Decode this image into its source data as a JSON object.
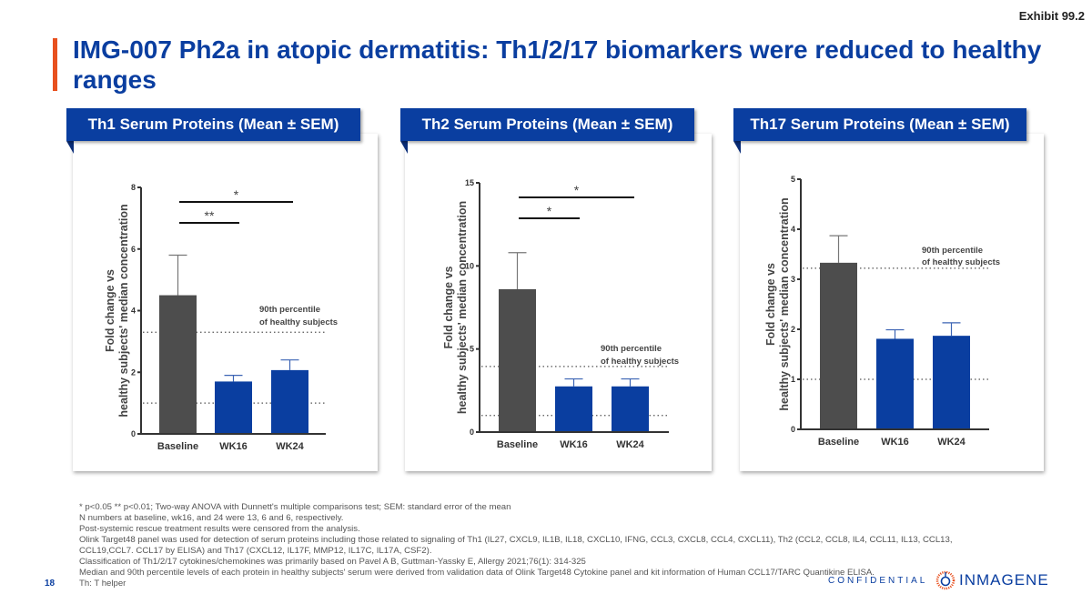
{
  "exhibit": "Exhibit 99.2",
  "title": "IMG-007 Ph2a in atopic dermatitis: Th1/2/17 biomarkers were reduced to healthy ranges",
  "colors": {
    "brand": "#0a3ea0",
    "accent": "#e8501e",
    "baseline_bar": "#4d4d4d",
    "treatment_bar": "#0a3ea0"
  },
  "chart_data": [
    {
      "type": "bar",
      "title": "Th1 Serum Proteins (Mean ± SEM)",
      "ylabel": "Fold change vs healthy subjects' median concentration",
      "xlabel": "",
      "categories": [
        "Baseline",
        "WK16",
        "WK24"
      ],
      "values": [
        4.5,
        1.7,
        2.07
      ],
      "error_upper": [
        5.8,
        1.9,
        2.4
      ],
      "ylim": [
        0,
        8
      ],
      "yticks": [
        0,
        2,
        4,
        6,
        8
      ],
      "reference_lines": [
        {
          "y": 3.3,
          "label": "90th percentile of healthy subjects"
        },
        {
          "y": 1.0,
          "label": ""
        }
      ],
      "annotations": [
        {
          "from": "Baseline",
          "to": "WK24",
          "text": "*"
        },
        {
          "from": "Baseline",
          "to": "WK16",
          "text": "**"
        }
      ],
      "grid": false
    },
    {
      "type": "bar",
      "title": "Th2 Serum Proteins (Mean ± SEM)",
      "ylabel": "Fold change vs healthy subjects' median concentration",
      "xlabel": "",
      "categories": [
        "Baseline",
        "WK16",
        "WK24"
      ],
      "values": [
        8.6,
        2.75,
        2.75
      ],
      "error_upper": [
        10.8,
        3.2,
        3.2
      ],
      "ylim": [
        0,
        15
      ],
      "yticks": [
        0,
        5,
        10,
        15
      ],
      "reference_lines": [
        {
          "y": 3.95,
          "label": "90th percentile of healthy subjects"
        },
        {
          "y": 1.0,
          "label": ""
        }
      ],
      "annotations": [
        {
          "from": "Baseline",
          "to": "WK24",
          "text": "*"
        },
        {
          "from": "Baseline",
          "to": "WK16",
          "text": "*"
        }
      ],
      "grid": false
    },
    {
      "type": "bar",
      "title": "Th17 Serum Proteins (Mean ± SEM)",
      "ylabel": "Fold change vs healthy subjects' median concentration",
      "xlabel": "",
      "categories": [
        "Baseline",
        "WK16",
        "WK24"
      ],
      "values": [
        3.33,
        1.81,
        1.87
      ],
      "error_upper": [
        3.87,
        1.99,
        2.13
      ],
      "ylim": [
        0,
        5
      ],
      "yticks": [
        0,
        1,
        2,
        3,
        4,
        5
      ],
      "reference_lines": [
        {
          "y": 3.22,
          "label": "90th percentile of healthy subjects"
        },
        {
          "y": 1.0,
          "label": ""
        }
      ],
      "annotations": [],
      "grid": false
    }
  ],
  "panels": [
    {
      "header": "Th1 Serum Proteins (Mean ± SEM)",
      "ylabel_line1": "Fold change vs",
      "ylabel_line2": "healthy subjects' median concentration",
      "ref_label_line1": "90th percentile",
      "ref_label_line2": "of healthy subjects"
    },
    {
      "header": "Th2 Serum Proteins (Mean ± SEM)",
      "ylabel_line1": "Fold change vs",
      "ylabel_line2": "healthy subjects' median concentration",
      "ref_label_line1": "90th percentile",
      "ref_label_line2": "of healthy subjects"
    },
    {
      "header": "Th17 Serum Proteins (Mean ± SEM)",
      "ylabel_line1": "Fold change vs",
      "ylabel_line2": "healthy subjects' median concentration",
      "ref_label_line1": "90th percentile",
      "ref_label_line2": "of healthy subjects"
    }
  ],
  "footnotes": [
    "* p<0.05 ** p<0.01; Two-way ANOVA with Dunnett's multiple comparisons test; SEM: standard error of the mean",
    "N numbers at baseline, wk16, and 24 were 13, 6 and 6, respectively.",
    "Post-systemic rescue treatment results were censored from the analysis.",
    "Olink Target48 panel was used for detection of serum proteins including those related to signaling of Th1 (IL27, CXCL9, IL1B, IL18, CXCL10, IFNG, CCL3, CXCL8, CCL4, CXCL11), Th2 (CCL2, CCL8, IL4, CCL11, IL13, CCL13,",
    "CCL19,CCL7. CCL17 by ELISA) and Th17 (CXCL12, IL17F, MMP12, IL17C, IL17A, CSF2).",
    "Classification of Th1/2/17 cytokines/chemokines was primarily based on Pavel A B, Guttman-Yassky E, Allergy 2021;76(1): 314-325",
    "Median and 90th percentile levels of each protein in healthy subjects' serum were derived from validation data of Olink Target48 Cytokine panel and kit information of Human CCL17/TARC Quantikine ELISA.",
    "Th: T helper"
  ],
  "footer": {
    "page_number": "18",
    "confidential": "CONFIDENTIAL",
    "logo_text": "INMAGENE"
  }
}
